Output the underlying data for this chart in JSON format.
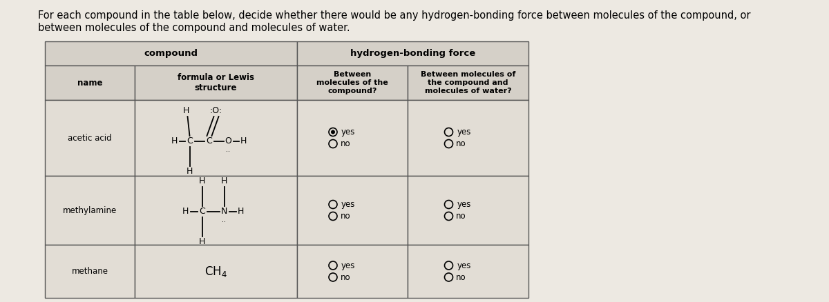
{
  "title_line1": "For each compound in the table below, decide whether there would be any hydrogen-bonding force between molecules of the compound, or",
  "title_line2": "between molecules of the compound and molecules of water.",
  "bg_color": "#ede9e2",
  "table_bg": "#e2ddd5",
  "header_bg": "#d5d0c8",
  "border_color": "#555555",
  "text_color": "#000000",
  "col_header_1": "compound",
  "col_header_2": "hydrogen-bonding force",
  "sub_col1": "name",
  "sub_col2": "formula or Lewis\nstructure",
  "sub_col3": "Between\nmolecules of the\ncompound?",
  "sub_col4": "Between molecules of\nthe compound and\nmolecules of water?",
  "row_names": [
    "acetic acid",
    "methylamine",
    "methane"
  ],
  "acetic_yes_filled": true,
  "acetic_no_filled": false,
  "methyl_yes_filled": false,
  "methyl_no_filled": false,
  "methane_yes_filled": false,
  "methane_no_filled": false
}
